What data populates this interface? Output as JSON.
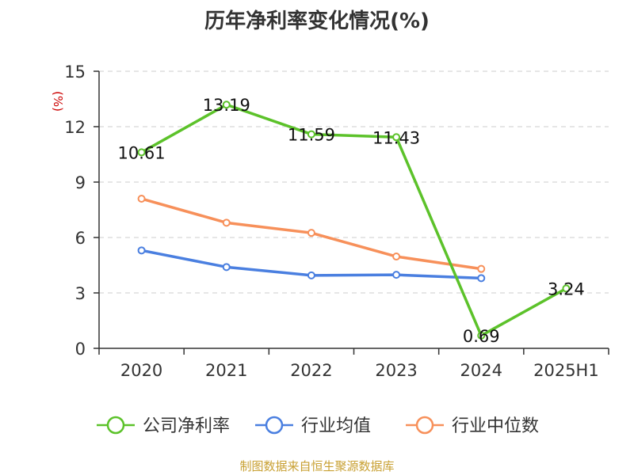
{
  "title": "历年净利率变化情况(%)",
  "source": "制图数据来自恒生聚源数据库",
  "chart_data": {
    "type": "line",
    "title": "历年净利率变化情况(%)",
    "ylabel": "(%)",
    "xlabel": "",
    "categories": [
      "2020",
      "2021",
      "2022",
      "2023",
      "2024",
      "2025H1"
    ],
    "ylim": [
      0,
      15
    ],
    "yticks": [
      0,
      3,
      6,
      9,
      12,
      15
    ],
    "grid": true,
    "legend_position": "bottom",
    "series": [
      {
        "name": "公司净利率",
        "color": "#5cc22a",
        "values": [
          10.61,
          13.19,
          11.59,
          11.43,
          0.69,
          3.24
        ],
        "labels": [
          "10.61",
          "13.19",
          "11.59",
          "11.43",
          "0.69",
          "3.24"
        ]
      },
      {
        "name": "行业均值",
        "color": "#4a7fe0",
        "values": [
          5.3,
          4.4,
          3.95,
          3.98,
          3.8,
          null
        ]
      },
      {
        "name": "行业中位数",
        "color": "#f7905a",
        "values": [
          8.1,
          6.8,
          6.25,
          4.97,
          4.3,
          null
        ]
      }
    ],
    "colors": {
      "axis": "#333333",
      "grid": "#cccccc",
      "ylabel": "#cc0000"
    }
  }
}
